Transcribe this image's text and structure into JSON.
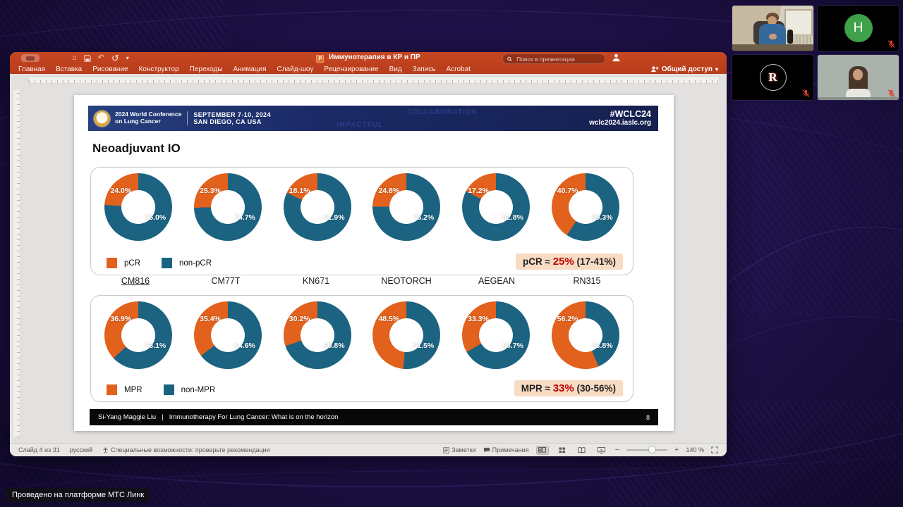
{
  "platform_badge": "Проведено на платформе МТС Линк",
  "participants": [
    {
      "id": "camera-1",
      "muted": false
    },
    {
      "id": "avatar-h",
      "initial": "H",
      "avatar_color": "#3fa24b",
      "muted": true
    },
    {
      "id": "logo-r",
      "logo_letter": "R",
      "muted": true
    },
    {
      "id": "camera-2",
      "muted": true
    }
  ],
  "powerpoint": {
    "titlebar": {
      "app_letter": "P",
      "title": "Иммунотерапия в КР и ПР",
      "search_placeholder": "Поиск в презентации"
    },
    "menu": [
      "Главная",
      "Вставка",
      "Рисование",
      "Конструктор",
      "Переходы",
      "Анимация",
      "Слайд-шоу",
      "Рецензирование",
      "Вид",
      "Запись",
      "Acrobat"
    ],
    "share_label": "Общий доступ",
    "statusbar": {
      "slide_info": "Слайд 4 из 31",
      "language": "русский",
      "accessibility": "Специальные возможности: проверьте рекомендации",
      "notes": "Заметки",
      "comments": "Примечания",
      "zoom": "140 %"
    }
  },
  "slide": {
    "banner": {
      "conf_line1": "2024 World Conference",
      "conf_line2": "on Lung Cancer",
      "date_line1": "SEPTEMBER 7-10, 2024",
      "date_line2": "SAN DIEGO, CA USA",
      "hashtag": "#WCLC24",
      "website": "wclc2024.iaslc.org",
      "watermarks": [
        "COLLABORATION",
        "IMPACTFUL"
      ]
    },
    "title": "Neoadjuvant IO",
    "studies": [
      "CM816",
      "CM77T",
      "KN671",
      "NEOTORCH",
      "AEGEAN",
      "RN315"
    ],
    "footer": {
      "author": "Si-Yang Maggie Liu",
      "sep": "|",
      "talk_title": "Immunotherapy For Lung Cancer: What is on the horizon",
      "page": "8"
    }
  },
  "chart_data": [
    {
      "type": "pie",
      "subtype": "donut-row",
      "categories": [
        "CM816",
        "CM77T",
        "KN671",
        "NEOTORCH",
        "AEGEAN",
        "RN315"
      ],
      "series": [
        {
          "name": "pCR",
          "color": "#e2611c",
          "values": [
            24.0,
            25.3,
            18.1,
            24.8,
            17.2,
            40.7
          ]
        },
        {
          "name": "non-pCR",
          "color": "#1b6381",
          "values": [
            76.0,
            74.7,
            81.9,
            75.2,
            82.8,
            59.3
          ]
        }
      ],
      "legend_position": "bottom-left",
      "annotation": {
        "prefix": "pCR ≈ ",
        "value": "25%",
        "suffix": " (17-41%)"
      }
    },
    {
      "type": "pie",
      "subtype": "donut-row",
      "categories": [
        "CM816",
        "CM77T",
        "KN671",
        "NEOTORCH",
        "AEGEAN",
        "RN315"
      ],
      "series": [
        {
          "name": "MPR",
          "color": "#e2611c",
          "values": [
            36.9,
            35.4,
            30.2,
            48.5,
            33.3,
            56.2
          ]
        },
        {
          "name": "non-MPR",
          "color": "#1b6381",
          "values": [
            63.1,
            64.6,
            69.8,
            51.5,
            66.7,
            43.8
          ]
        }
      ],
      "legend_position": "bottom-left",
      "annotation": {
        "prefix": "MPR ≈ ",
        "value": "33%",
        "suffix": " (30-56%)"
      }
    }
  ]
}
